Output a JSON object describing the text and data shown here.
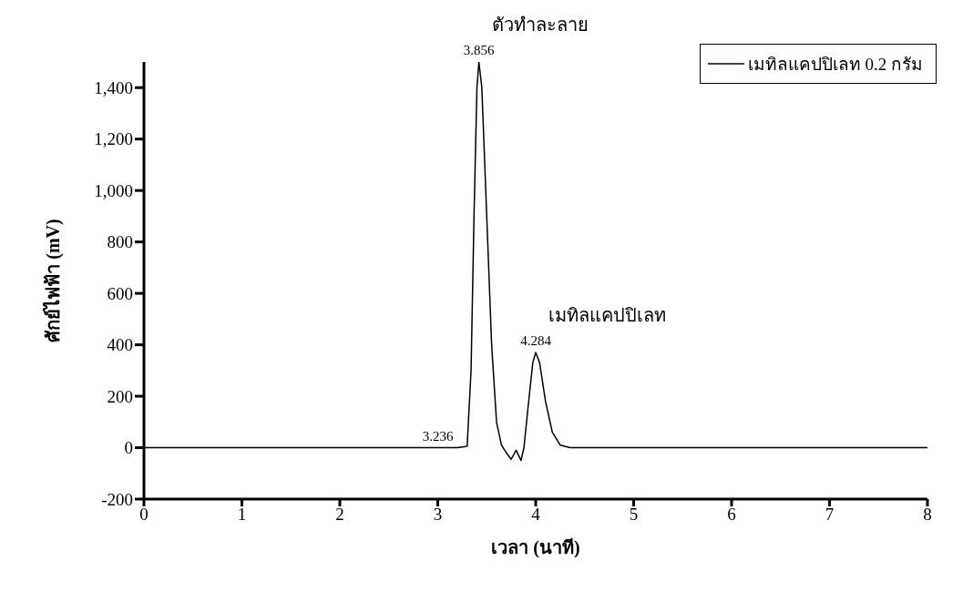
{
  "chart_data": {
    "type": "line",
    "xlabel": "เวลา (นาที)",
    "ylabel": "ศักย์ไฟฟ้า (mV)",
    "x": [
      0,
      3.2,
      3.3,
      3.34,
      3.37,
      3.4,
      3.42,
      3.45,
      3.5,
      3.55,
      3.6,
      3.65,
      3.7,
      3.75,
      3.8,
      3.85,
      3.88,
      3.92,
      3.97,
      4.0,
      4.04,
      4.1,
      4.17,
      4.25,
      4.35,
      8
    ],
    "series": [
      {
        "name": "เมทิลแคปปิเลท 0.2 กรัม",
        "color": "#000000",
        "values": [
          0,
          0,
          5,
          300,
          900,
          1400,
          1500,
          1400,
          900,
          400,
          100,
          10,
          -20,
          -45,
          -10,
          -50,
          0,
          150,
          330,
          370,
          330,
          180,
          60,
          10,
          0,
          0
        ]
      }
    ],
    "xlim": [
      0,
      8
    ],
    "xticks": [
      0,
      1,
      2,
      3,
      4,
      5,
      6,
      7,
      8
    ],
    "ylim": [
      -200,
      1500
    ],
    "yticks": [
      -200,
      0,
      200,
      400,
      600,
      800,
      {
        "value": 1000,
        "label": "1,000"
      },
      {
        "value": 1200,
        "label": "1,200"
      },
      {
        "value": 1400,
        "label": "1,400"
      }
    ],
    "annotations": [
      {
        "text": "3.856",
        "x": 3.42,
        "y": 1500
      },
      {
        "text": "ตัวทำละลาย",
        "x": 3.42,
        "y": 1500
      },
      {
        "text": "4.284",
        "x": 4.0,
        "y": 370
      },
      {
        "text": "เมทิลแคปปิเลท",
        "x": 4.0,
        "y": 370
      },
      {
        "text": "3.236",
        "x": 3.0,
        "y": 0
      }
    ],
    "grid": false,
    "legend": "top right",
    "marker": "none",
    "line_style": "solid"
  }
}
